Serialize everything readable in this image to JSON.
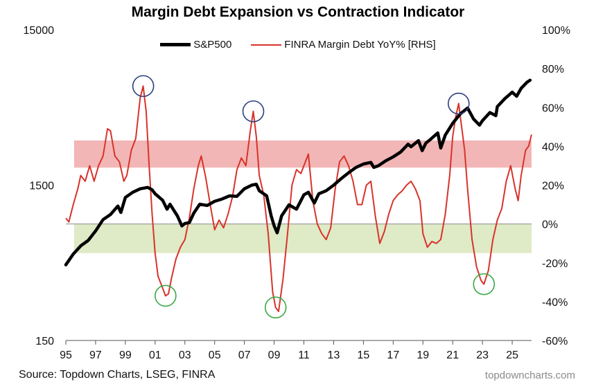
{
  "header": {
    "title": "Margin Debt Expansion vs Contraction Indicator"
  },
  "footer": {
    "source": "Source: Topdown Charts, LSEG, FINRA",
    "credit": "topdowncharts.com"
  },
  "chart_data": {
    "type": "line",
    "title": "Margin Debt Expansion vs Contraction Indicator",
    "x_ticks": [
      "95",
      "97",
      "99",
      "01",
      "03",
      "05",
      "07",
      "09",
      "11",
      "13",
      "15",
      "17",
      "19",
      "21",
      "23",
      "25"
    ],
    "x_tick_years": [
      1995,
      1997,
      1999,
      2001,
      2003,
      2005,
      2007,
      2009,
      2011,
      2013,
      2015,
      2017,
      2019,
      2021,
      2023,
      2025
    ],
    "xlim": [
      1995,
      2026.3
    ],
    "y_left": {
      "scale": "log",
      "ticks": [
        "15000",
        "1500",
        "150"
      ],
      "tick_values": [
        15000,
        1500,
        150
      ],
      "ylim": [
        150,
        15000
      ]
    },
    "y_right": {
      "ticks": [
        "100%",
        "80%",
        "60%",
        "40%",
        "20%",
        "0%",
        "-20%",
        "-40%",
        "-60%"
      ],
      "tick_values": [
        100,
        80,
        60,
        40,
        20,
        0,
        -20,
        -40,
        -60
      ],
      "ylim": [
        -60,
        100
      ]
    },
    "bands": [
      {
        "name": "expansion",
        "from": 29,
        "to": 43,
        "axis": "right",
        "color": "#f2b6b6"
      },
      {
        "name": "contraction",
        "from": -15,
        "to": 0,
        "axis": "right",
        "color": "#dfeac6"
      }
    ],
    "circles": [
      {
        "x": 2000.2,
        "y": 71,
        "color": "#2b3f7e"
      },
      {
        "x": 2007.6,
        "y": 58,
        "color": "#2b3f7e"
      },
      {
        "x": 2021.4,
        "y": 62,
        "color": "#2b3f7e"
      },
      {
        "x": 2001.7,
        "y": -37,
        "color": "#3aa845"
      },
      {
        "x": 2009.1,
        "y": -43,
        "color": "#3aa845"
      },
      {
        "x": 2023.1,
        "y": -31,
        "color": "#3aa845"
      }
    ],
    "series": [
      {
        "name": "S&P500",
        "axis": "left",
        "color": "#000000",
        "points": [
          [
            1995.0,
            460
          ],
          [
            1995.5,
            540
          ],
          [
            1996.0,
            610
          ],
          [
            1996.5,
            660
          ],
          [
            1997.0,
            760
          ],
          [
            1997.5,
            900
          ],
          [
            1998.0,
            970
          ],
          [
            1998.5,
            1100
          ],
          [
            1998.7,
            1000
          ],
          [
            1999.0,
            1250
          ],
          [
            1999.5,
            1350
          ],
          [
            2000.0,
            1420
          ],
          [
            2000.5,
            1450
          ],
          [
            2000.8,
            1400
          ],
          [
            2001.0,
            1320
          ],
          [
            2001.5,
            1200
          ],
          [
            2001.8,
            1050
          ],
          [
            2002.0,
            1130
          ],
          [
            2002.5,
            950
          ],
          [
            2002.8,
            820
          ],
          [
            2003.0,
            850
          ],
          [
            2003.3,
            860
          ],
          [
            2003.6,
            990
          ],
          [
            2004.0,
            1130
          ],
          [
            2004.5,
            1110
          ],
          [
            2005.0,
            1180
          ],
          [
            2005.5,
            1220
          ],
          [
            2006.0,
            1280
          ],
          [
            2006.5,
            1270
          ],
          [
            2007.0,
            1420
          ],
          [
            2007.5,
            1500
          ],
          [
            2007.8,
            1520
          ],
          [
            2008.0,
            1380
          ],
          [
            2008.5,
            1280
          ],
          [
            2008.8,
            950
          ],
          [
            2009.0,
            820
          ],
          [
            2009.2,
            740
          ],
          [
            2009.5,
            950
          ],
          [
            2010.0,
            1120
          ],
          [
            2010.5,
            1050
          ],
          [
            2011.0,
            1300
          ],
          [
            2011.3,
            1350
          ],
          [
            2011.7,
            1150
          ],
          [
            2012.0,
            1320
          ],
          [
            2012.5,
            1380
          ],
          [
            2013.0,
            1500
          ],
          [
            2013.5,
            1650
          ],
          [
            2014.0,
            1800
          ],
          [
            2014.5,
            1950
          ],
          [
            2015.0,
            2050
          ],
          [
            2015.5,
            2100
          ],
          [
            2015.7,
            1950
          ],
          [
            2016.0,
            2000
          ],
          [
            2016.5,
            2150
          ],
          [
            2017.0,
            2280
          ],
          [
            2017.5,
            2450
          ],
          [
            2018.0,
            2750
          ],
          [
            2018.2,
            2650
          ],
          [
            2018.7,
            2900
          ],
          [
            2018.95,
            2500
          ],
          [
            2019.2,
            2800
          ],
          [
            2019.5,
            2950
          ],
          [
            2020.0,
            3250
          ],
          [
            2020.2,
            2600
          ],
          [
            2020.5,
            3150
          ],
          [
            2021.0,
            3750
          ],
          [
            2021.5,
            4300
          ],
          [
            2022.0,
            4700
          ],
          [
            2022.4,
            4000
          ],
          [
            2022.8,
            3650
          ],
          [
            2023.0,
            3900
          ],
          [
            2023.5,
            4400
          ],
          [
            2023.9,
            4200
          ],
          [
            2024.0,
            4800
          ],
          [
            2024.5,
            5400
          ],
          [
            2025.0,
            5950
          ],
          [
            2025.3,
            5600
          ],
          [
            2025.6,
            6300
          ],
          [
            2026.0,
            6900
          ],
          [
            2026.2,
            7100
          ]
        ]
      },
      {
        "name": "FINRA Margin Debt YoY% [RHS]",
        "axis": "right",
        "color": "#d8322a",
        "points": [
          [
            1995.0,
            3
          ],
          [
            1995.2,
            1
          ],
          [
            1995.5,
            10
          ],
          [
            1995.8,
            18
          ],
          [
            1996.0,
            25
          ],
          [
            1996.3,
            22
          ],
          [
            1996.6,
            30
          ],
          [
            1996.9,
            22
          ],
          [
            1997.2,
            30
          ],
          [
            1997.5,
            35
          ],
          [
            1997.8,
            49
          ],
          [
            1998.0,
            48
          ],
          [
            1998.3,
            35
          ],
          [
            1998.6,
            32
          ],
          [
            1998.9,
            22
          ],
          [
            1999.1,
            25
          ],
          [
            1999.4,
            38
          ],
          [
            1999.7,
            44
          ],
          [
            2000.0,
            65
          ],
          [
            2000.2,
            71
          ],
          [
            2000.4,
            58
          ],
          [
            2000.6,
            30
          ],
          [
            2000.8,
            5
          ],
          [
            2001.0,
            -15
          ],
          [
            2001.2,
            -27
          ],
          [
            2001.5,
            -33
          ],
          [
            2001.7,
            -37
          ],
          [
            2001.9,
            -36
          ],
          [
            2002.1,
            -28
          ],
          [
            2002.4,
            -18
          ],
          [
            2002.7,
            -12
          ],
          [
            2003.0,
            -8
          ],
          [
            2003.3,
            3
          ],
          [
            2003.6,
            18
          ],
          [
            2003.9,
            30
          ],
          [
            2004.1,
            35
          ],
          [
            2004.4,
            24
          ],
          [
            2004.7,
            10
          ],
          [
            2005.0,
            -3
          ],
          [
            2005.3,
            2
          ],
          [
            2005.6,
            -2
          ],
          [
            2005.9,
            5
          ],
          [
            2006.2,
            14
          ],
          [
            2006.5,
            28
          ],
          [
            2006.8,
            34
          ],
          [
            2007.1,
            30
          ],
          [
            2007.4,
            48
          ],
          [
            2007.6,
            58
          ],
          [
            2007.8,
            45
          ],
          [
            2008.0,
            25
          ],
          [
            2008.3,
            15
          ],
          [
            2008.6,
            -5
          ],
          [
            2008.9,
            -35
          ],
          [
            2009.1,
            -43
          ],
          [
            2009.3,
            -45
          ],
          [
            2009.6,
            -28
          ],
          [
            2009.9,
            -5
          ],
          [
            2010.2,
            20
          ],
          [
            2010.5,
            28
          ],
          [
            2010.8,
            26
          ],
          [
            2011.0,
            30
          ],
          [
            2011.3,
            36
          ],
          [
            2011.6,
            12
          ],
          [
            2011.9,
            0
          ],
          [
            2012.2,
            -5
          ],
          [
            2012.5,
            -8
          ],
          [
            2012.8,
            -2
          ],
          [
            2013.1,
            18
          ],
          [
            2013.4,
            32
          ],
          [
            2013.7,
            35
          ],
          [
            2014.0,
            30
          ],
          [
            2014.3,
            22
          ],
          [
            2014.6,
            10
          ],
          [
            2014.9,
            10
          ],
          [
            2015.2,
            20
          ],
          [
            2015.5,
            22
          ],
          [
            2015.8,
            4
          ],
          [
            2016.1,
            -10
          ],
          [
            2016.4,
            -4
          ],
          [
            2016.7,
            5
          ],
          [
            2017.0,
            12
          ],
          [
            2017.3,
            15
          ],
          [
            2017.6,
            17
          ],
          [
            2017.9,
            20
          ],
          [
            2018.2,
            22
          ],
          [
            2018.5,
            18
          ],
          [
            2018.8,
            12
          ],
          [
            2019.0,
            -5
          ],
          [
            2019.3,
            -12
          ],
          [
            2019.6,
            -9
          ],
          [
            2019.9,
            -10
          ],
          [
            2020.2,
            -8
          ],
          [
            2020.5,
            5
          ],
          [
            2020.8,
            25
          ],
          [
            2021.0,
            45
          ],
          [
            2021.2,
            55
          ],
          [
            2021.4,
            62
          ],
          [
            2021.6,
            50
          ],
          [
            2021.8,
            38
          ],
          [
            2022.0,
            18
          ],
          [
            2022.3,
            -8
          ],
          [
            2022.6,
            -22
          ],
          [
            2022.9,
            -29
          ],
          [
            2023.1,
            -31
          ],
          [
            2023.4,
            -24
          ],
          [
            2023.7,
            -8
          ],
          [
            2024.0,
            2
          ],
          [
            2024.3,
            8
          ],
          [
            2024.6,
            22
          ],
          [
            2024.9,
            30
          ],
          [
            2025.2,
            18
          ],
          [
            2025.4,
            12
          ],
          [
            2025.6,
            25
          ],
          [
            2025.9,
            38
          ],
          [
            2026.1,
            40
          ],
          [
            2026.3,
            46
          ]
        ]
      }
    ]
  }
}
